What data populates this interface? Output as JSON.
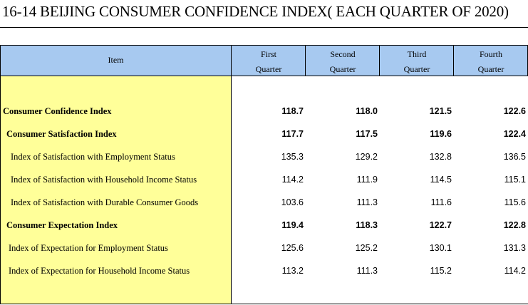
{
  "title": "16-14  BEIJING CONSUMER CONFIDENCE INDEX( EACH QUARTER OF 2020)",
  "header": {
    "item": "Item",
    "quarters": [
      {
        "line1": "First",
        "line2": "Quarter"
      },
      {
        "line1": "Second",
        "line2": "Quarter"
      },
      {
        "line1": "Third",
        "line2": "Quarter"
      },
      {
        "line1": "Fourth",
        "line2": "Quarter"
      }
    ]
  },
  "rows": [
    {
      "label": "Consumer Confidence Index",
      "bold": true,
      "indent": 0,
      "values": [
        "118.7",
        "118.0",
        "121.5",
        "122.6"
      ]
    },
    {
      "label": "Consumer Satisfaction Index",
      "bold": true,
      "indent": 1,
      "values": [
        "117.7",
        "117.5",
        "119.6",
        "122.4"
      ]
    },
    {
      "label": "Index of Satisfaction with Employment Status",
      "bold": false,
      "indent": 2,
      "values": [
        "135.3",
        "129.2",
        "132.8",
        "136.5"
      ]
    },
    {
      "label": "Index of Satisfaction with Household Income Status",
      "bold": false,
      "indent": 2,
      "values": [
        "114.2",
        "111.9",
        "114.5",
        "115.1"
      ]
    },
    {
      "label": "Index of Satisfaction with Durable Consumer Goods",
      "bold": false,
      "indent": 2,
      "values": [
        "103.6",
        "111.3",
        "111.6",
        "115.6"
      ]
    },
    {
      "label": "Consumer Expectation Index",
      "bold": true,
      "indent": 1,
      "values": [
        "119.4",
        "118.3",
        "122.7",
        "122.8"
      ]
    },
    {
      "label": "Index of Expectation for Employment Status",
      "bold": false,
      "indent": 1.5,
      "values": [
        "125.6",
        "125.2",
        "130.1",
        "131.3"
      ]
    },
    {
      "label": "Index of Expectation for Household Income Status",
      "bold": false,
      "indent": 1.5,
      "values": [
        "113.2",
        "111.3",
        "115.2",
        "114.2"
      ]
    }
  ],
  "colors": {
    "header_bg": "#a7c9f0",
    "item_column_bg": "#ffff99"
  }
}
